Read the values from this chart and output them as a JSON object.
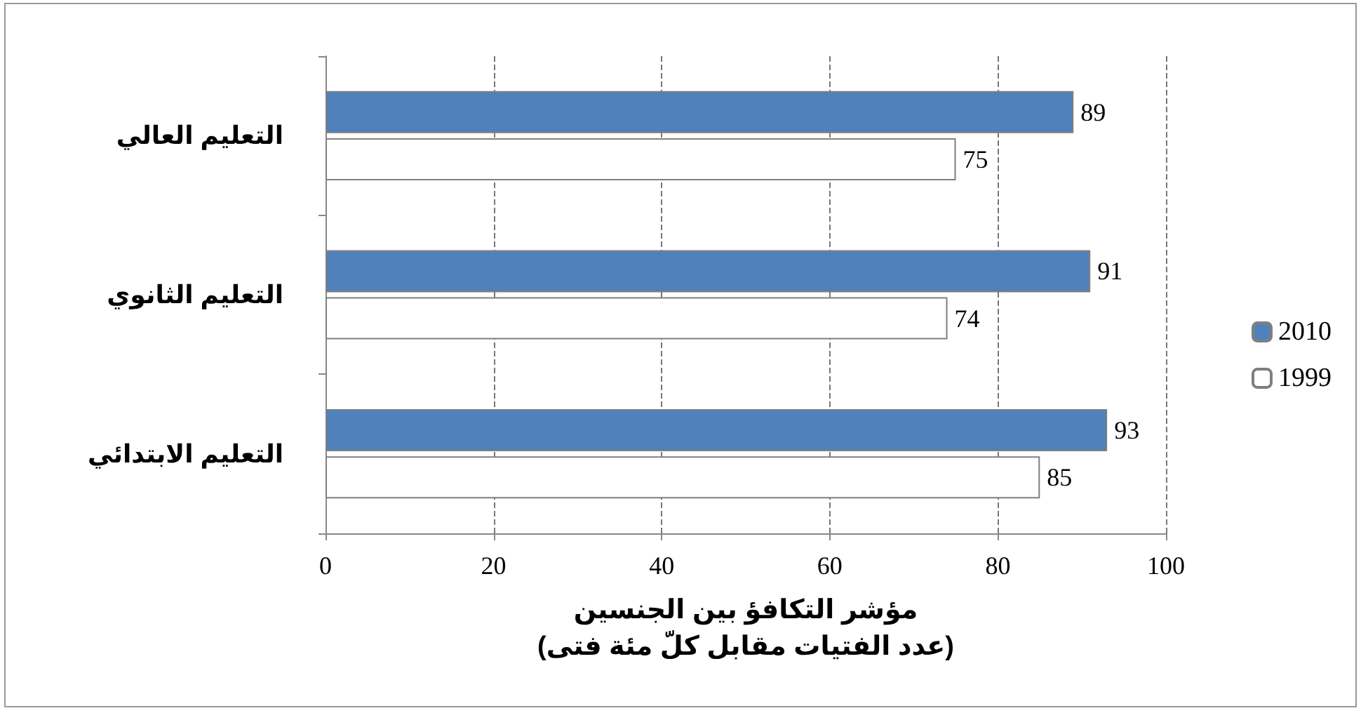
{
  "chart_data": {
    "type": "bar",
    "orientation": "horizontal",
    "categories": [
      "التعليم العالي",
      "التعليم الثانوي",
      "التعليم الابتدائي"
    ],
    "series": [
      {
        "name": "2010",
        "color": "#4f81bd",
        "values": [
          89,
          91,
          93
        ]
      },
      {
        "name": "1999",
        "color": "#ffffff",
        "values": [
          75,
          74,
          85
        ]
      }
    ],
    "xlabel": "مؤشر التكافؤ بين الجنسين\n(عدد الفتيات مقابل كلّ مئة فتى)",
    "xlim": [
      0,
      100
    ],
    "xticks": [
      0,
      20,
      40,
      60,
      80,
      100
    ],
    "grid": "x",
    "legend": "right",
    "data_labels": true
  }
}
